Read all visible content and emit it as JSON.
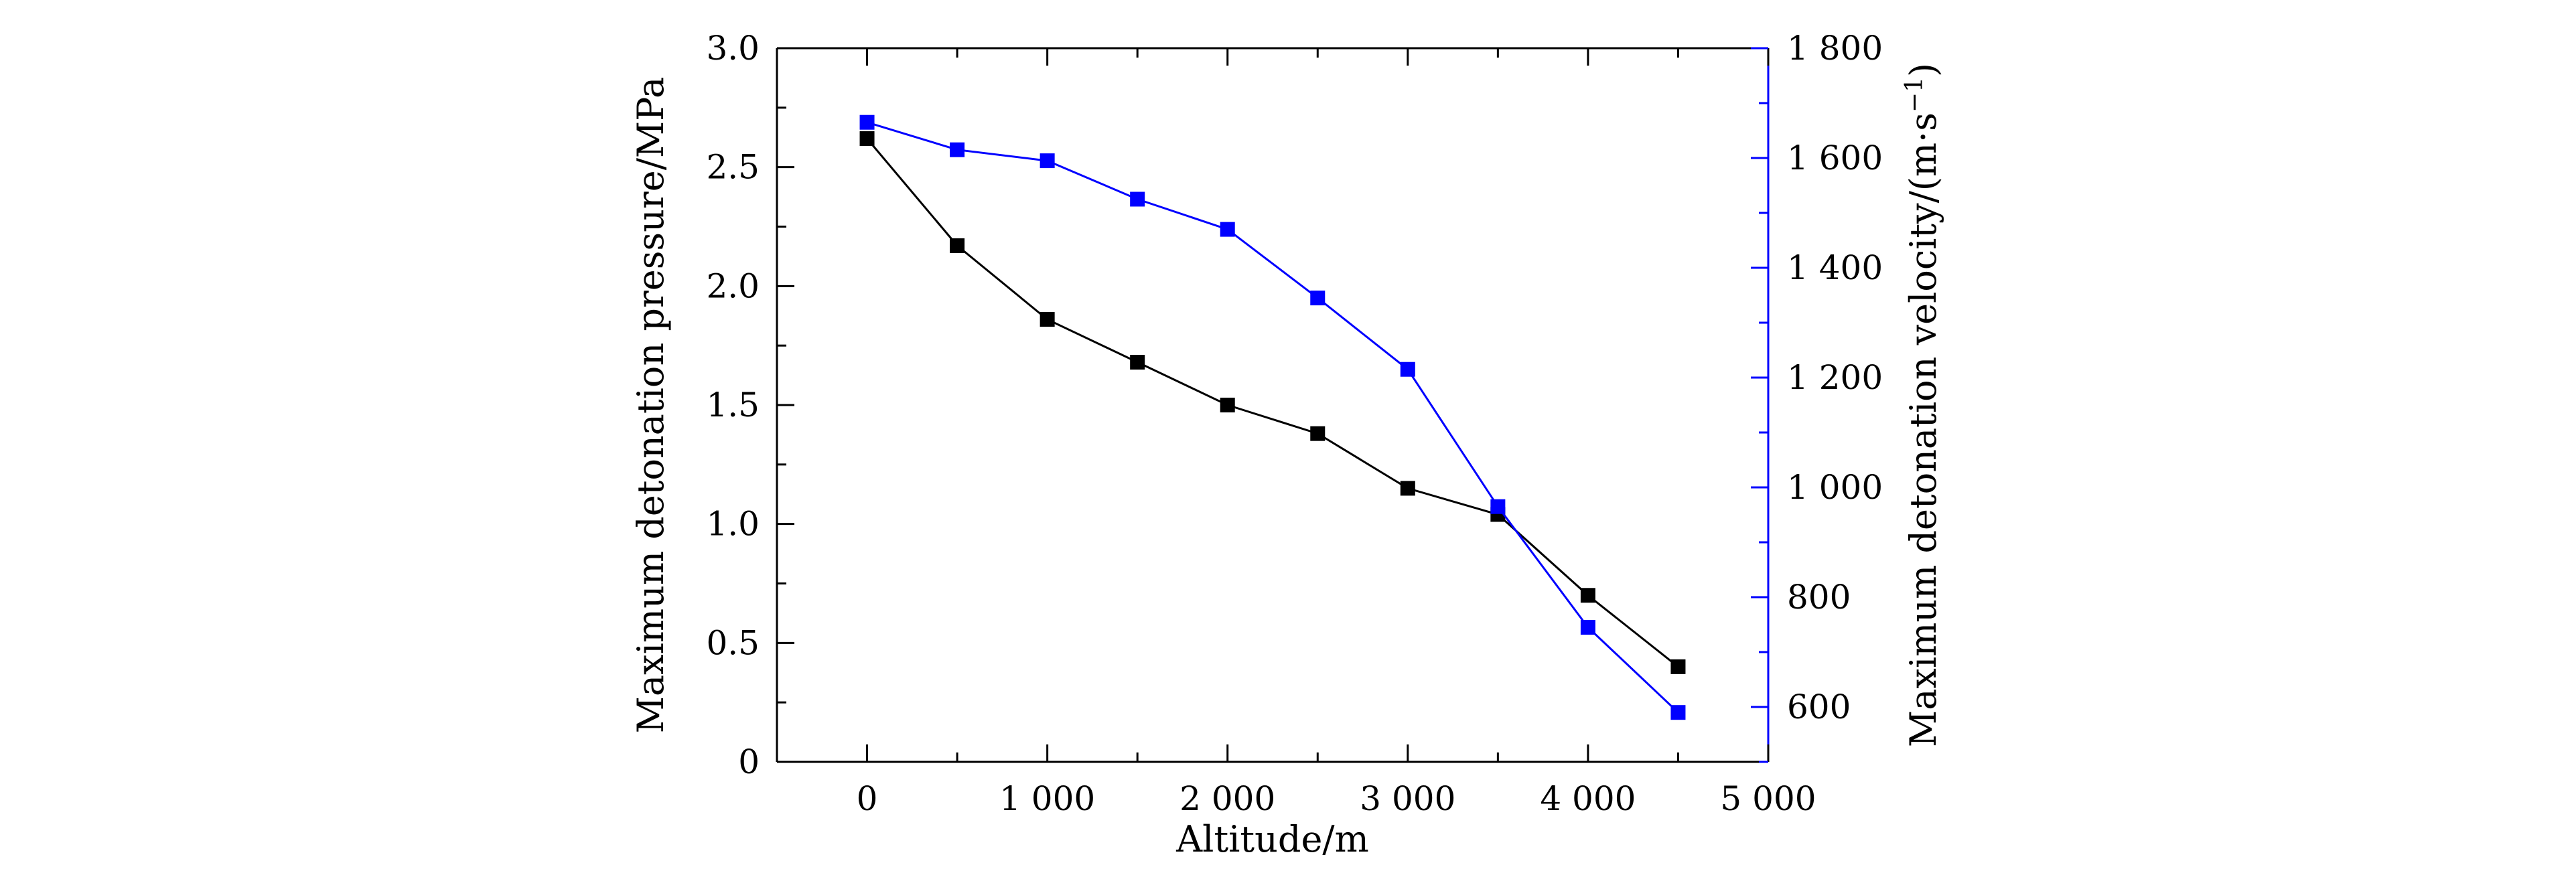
{
  "chart_data": {
    "type": "line",
    "title": "",
    "xlabel": "Altitude/m",
    "ylabel": "Maximum detonation pressure/MPa",
    "y2label": "Maximum detonation velocity/(m·s⁻¹)",
    "y2label_parts": {
      "base": "Maximum detonation velocity/(m·s",
      "sup": "−1",
      "close": ")"
    },
    "xlim": [
      -500,
      5000
    ],
    "ylim": [
      0,
      3.0
    ],
    "y2lim": [
      500,
      1800
    ],
    "x_ticks": [
      0,
      1000,
      2000,
      3000,
      4000,
      5000
    ],
    "x_tick_labels": [
      "0",
      "1 000",
      "2 000",
      "3 000",
      "4 000",
      "5 000"
    ],
    "y_ticks": [
      0,
      0.5,
      1.0,
      1.5,
      2.0,
      2.5,
      3.0
    ],
    "y_tick_labels": [
      "0",
      "0.5",
      "1.0",
      "1.5",
      "2.0",
      "2.5",
      "3.0"
    ],
    "y2_ticks": [
      600,
      800,
      1000,
      1200,
      1400,
      1600,
      1800
    ],
    "y2_tick_labels": [
      "600",
      "800",
      "1 000",
      "1 200",
      "1 400",
      "1 600",
      "1 800"
    ],
    "grid": false,
    "legend": "none",
    "x": [
      0,
      500,
      1000,
      1500,
      2000,
      2500,
      3000,
      3500,
      4000,
      4500
    ],
    "series": [
      {
        "axis": "left",
        "color": "#000000",
        "marker": "square",
        "values": [
          2.62,
          2.17,
          1.86,
          1.68,
          1.5,
          1.38,
          1.15,
          1.04,
          0.7,
          0.4
        ]
      },
      {
        "axis": "right",
        "color": "#0000ff",
        "marker": "square",
        "values": [
          1665,
          1615,
          1595,
          1525,
          1470,
          1345,
          1215,
          965,
          745,
          590
        ]
      }
    ]
  }
}
